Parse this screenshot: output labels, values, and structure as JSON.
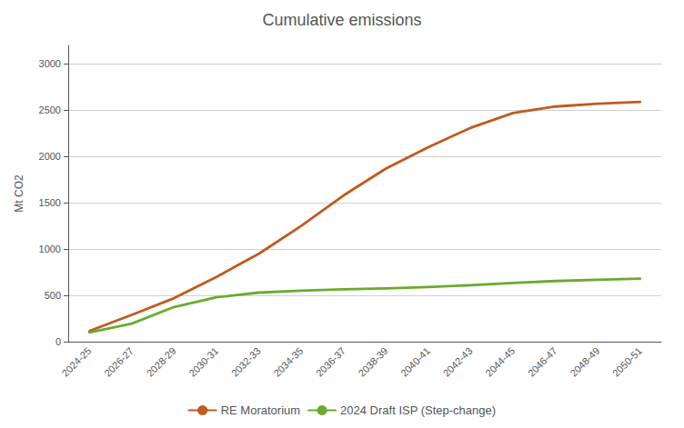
{
  "chart_data": {
    "type": "line",
    "title": "Cumulative emissions",
    "y_label": "Mt CO2",
    "categories": [
      "2024-25",
      "2026-27",
      "2028-29",
      "2030-31",
      "2032-33",
      "2034-35",
      "2036-37",
      "2038-39",
      "2040-41",
      "2042-43",
      "2044-45",
      "2046-47",
      "2048-49",
      "2050-51"
    ],
    "series": [
      {
        "name": "RE Moratorium",
        "color": "#C05A20",
        "values": [
          115,
          290,
          470,
          700,
          950,
          1250,
          1580,
          1870,
          2100,
          2310,
          2470,
          2540,
          2570,
          2590
        ]
      },
      {
        "name": "2024 Draft ISP (Step-change)",
        "color": "#6AAB2E",
        "values": [
          100,
          195,
          375,
          480,
          530,
          550,
          565,
          575,
          590,
          610,
          635,
          655,
          668,
          680
        ]
      }
    ],
    "ylim": [
      0,
      3200
    ],
    "yticks": [
      0,
      500,
      1000,
      1500,
      2000,
      2500,
      3000
    ],
    "grid": true,
    "legend": "bottom"
  }
}
